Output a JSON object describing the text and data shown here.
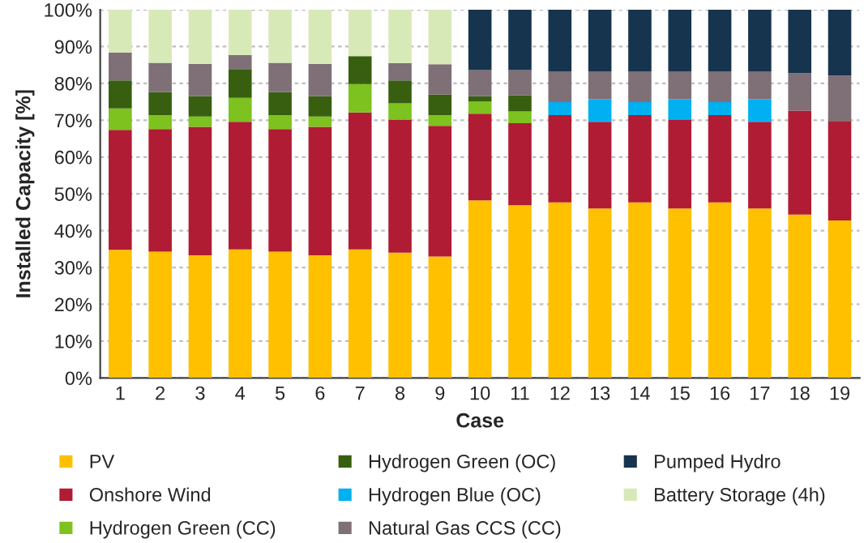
{
  "chart_data": {
    "type": "bar",
    "stacked": true,
    "xlabel": "Case",
    "ylabel": "Installed Capacity [%]",
    "categories": [
      "1",
      "2",
      "3",
      "4",
      "5",
      "6",
      "7",
      "8",
      "9",
      "10",
      "11",
      "12",
      "13",
      "14",
      "15",
      "16",
      "17",
      "18",
      "19"
    ],
    "series": [
      {
        "name": "PV",
        "color": "#ffc000",
        "values": [
          34.8,
          34.3,
          33.3,
          34.9,
          34.3,
          33.3,
          34.9,
          34.0,
          33.0,
          48.2,
          46.9,
          47.7,
          46.0,
          47.7,
          46.0,
          47.7,
          46.0,
          44.4,
          42.8
        ]
      },
      {
        "name": "Onshore Wind",
        "color": "#b01c33",
        "values": [
          32.6,
          33.3,
          34.9,
          34.7,
          33.3,
          34.9,
          37.2,
          36.2,
          35.5,
          23.6,
          22.3,
          23.7,
          23.6,
          23.7,
          24.1,
          23.7,
          23.6,
          28.2,
          27.0
        ]
      },
      {
        "name": "Hydrogen Green (CC)",
        "color": "#7dc21e",
        "values": [
          5.8,
          3.8,
          2.8,
          6.5,
          3.8,
          2.8,
          7.7,
          4.4,
          2.9,
          3.3,
          3.2,
          null,
          null,
          null,
          null,
          null,
          null,
          null,
          null
        ]
      },
      {
        "name": "Hydrogen Green (OC)",
        "color": "#375f0f",
        "values": [
          7.6,
          6.2,
          5.5,
          7.8,
          6.2,
          5.5,
          7.6,
          6.2,
          5.6,
          1.4,
          4.4,
          null,
          null,
          null,
          null,
          null,
          null,
          null,
          null
        ]
      },
      {
        "name": "Hydrogen Blue (OC)",
        "color": "#00b0f0",
        "values": [
          null,
          null,
          null,
          null,
          null,
          null,
          null,
          null,
          null,
          null,
          null,
          3.5,
          6.1,
          3.5,
          5.6,
          3.5,
          6.1,
          null,
          null
        ]
      },
      {
        "name": "Natural Gas CCS (CC)",
        "color": "#7f6f76",
        "values": [
          7.6,
          8.0,
          8.8,
          3.8,
          8.0,
          8.8,
          null,
          4.7,
          8.2,
          7.1,
          6.8,
          8.4,
          7.6,
          8.4,
          7.6,
          8.4,
          7.6,
          10.2,
          12.3
        ]
      },
      {
        "name": "Pumped Hydro",
        "color": "#17344e",
        "values": [
          null,
          null,
          null,
          null,
          null,
          null,
          null,
          null,
          null,
          16.4,
          16.4,
          16.7,
          16.7,
          16.7,
          16.7,
          16.7,
          16.7,
          17.2,
          17.9
        ]
      },
      {
        "name": "Battery Storage (4h)",
        "color": "#d8e9b8",
        "values": [
          11.6,
          14.4,
          14.7,
          12.3,
          14.4,
          14.7,
          12.6,
          14.5,
          14.8,
          null,
          null,
          null,
          null,
          null,
          null,
          null,
          null,
          null,
          null
        ]
      }
    ],
    "ylim": [
      0,
      100
    ],
    "yticks": [
      {
        "value": 0,
        "label": "0%"
      },
      {
        "value": 10,
        "label": "10%"
      },
      {
        "value": 20,
        "label": "20%"
      },
      {
        "value": 30,
        "label": "30%"
      },
      {
        "value": 40,
        "label": "40%"
      },
      {
        "value": 50,
        "label": "50%"
      },
      {
        "value": 60,
        "label": "60%"
      },
      {
        "value": 70,
        "label": "70%"
      },
      {
        "value": 80,
        "label": "80%"
      },
      {
        "value": 90,
        "label": "90%"
      },
      {
        "value": 100,
        "label": "100%"
      }
    ],
    "grid": "y",
    "legend": "bottom"
  }
}
